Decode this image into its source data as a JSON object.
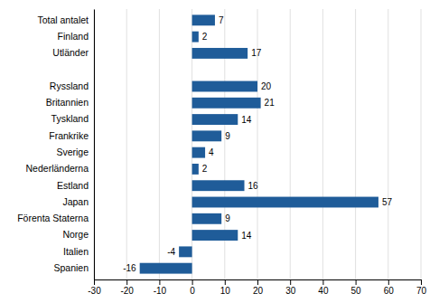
{
  "chart_data": {
    "type": "bar",
    "orientation": "horizontal",
    "categories": [
      "Total antalet",
      "Finland",
      "Utländer",
      null,
      "Ryssland",
      "Britannien",
      "Tyskland",
      "Frankrike",
      "Sverige",
      "Nederländerna",
      "Estland",
      "Japan",
      "Förenta Staterna",
      "Norge",
      "Italien",
      "Spanien"
    ],
    "values": [
      7,
      2,
      17,
      null,
      20,
      21,
      14,
      9,
      4,
      2,
      16,
      57,
      9,
      14,
      -4,
      -16
    ],
    "color": "#1F5C99",
    "xlim": [
      -30,
      70
    ],
    "xticks": [
      -30,
      -20,
      -10,
      0,
      10,
      20,
      30,
      40,
      50,
      60,
      70
    ],
    "grid": true,
    "data_labels": true
  }
}
